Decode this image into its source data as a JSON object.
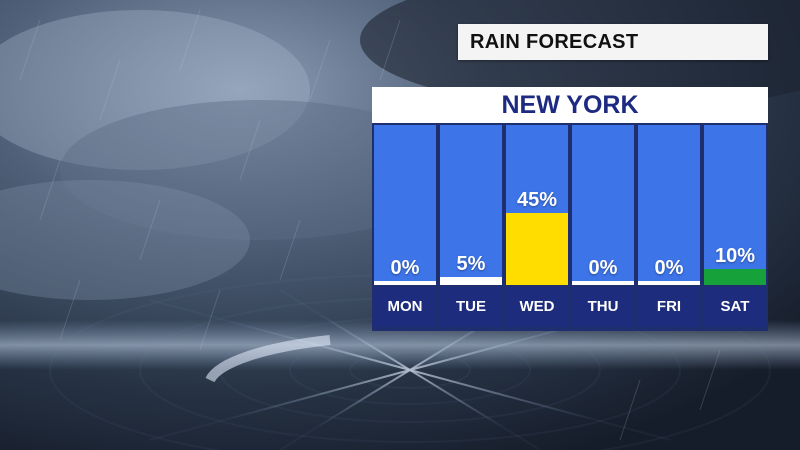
{
  "header": {
    "title": "RAIN FORECAST"
  },
  "colors": {
    "column": "#3d74e8",
    "zero_line": "#ffffff",
    "highlight": "#ffdd00",
    "accent": "#17a13b",
    "day_bg": "#1e2c7d",
    "city_text": "#1d2a82"
  },
  "chart_data": {
    "type": "bar",
    "title": "NEW YORK",
    "unit": "%",
    "categories": [
      "MON",
      "TUE",
      "WED",
      "THU",
      "FRI",
      "SAT"
    ],
    "values": [
      0,
      5,
      45,
      0,
      0,
      10
    ],
    "labels": [
      "0%",
      "5%",
      "45%",
      "0%",
      "0%",
      "10%"
    ],
    "ylim": [
      0,
      100
    ],
    "bar_colors": [
      "#ffffff",
      "#ffffff",
      "#ffdd00",
      "#ffffff",
      "#ffffff",
      "#17a13b"
    ],
    "grid": false,
    "legend": "none"
  }
}
